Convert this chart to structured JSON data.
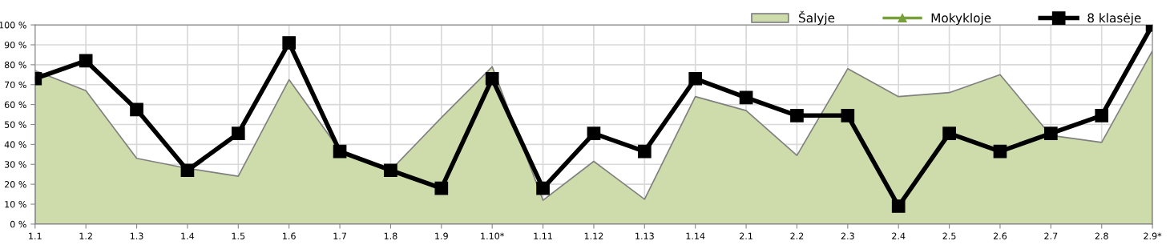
{
  "chart_data": {
    "type": "area",
    "categories": [
      "1.1",
      "1.2",
      "1.3",
      "1.4",
      "1.5",
      "1.6",
      "1.7",
      "1.8",
      "1.9",
      "1.10*",
      "1.11",
      "1.12",
      "1.13",
      "1.14",
      "2.1",
      "2.2",
      "2.3",
      "2.4",
      "2.5",
      "2.6",
      "2.7",
      "2.8",
      "2.9*"
    ],
    "series": [
      {
        "name": "Šalyje",
        "color": "#cddcaa",
        "values": [
          77,
          67,
          33,
          28,
          24,
          72.5,
          37,
          27,
          53.5,
          79,
          12,
          31.5,
          12.5,
          64,
          57,
          34.5,
          78,
          64,
          66,
          75,
          44.5,
          41,
          87
        ]
      },
      {
        "name": "Mokykloje",
        "type": "line",
        "color": "#77a03c",
        "marker": "triangle",
        "values": [
          null,
          null,
          null,
          null,
          null,
          null,
          null,
          null,
          null,
          null,
          null,
          null,
          null,
          null,
          null,
          null,
          null,
          null,
          null,
          null,
          null,
          null,
          null
        ]
      },
      {
        "name": "8 klasėje",
        "type": "line",
        "color": "#000000",
        "marker": "square",
        "values": [
          73,
          82,
          57.5,
          27,
          45.5,
          91,
          36.5,
          27,
          18,
          73,
          18,
          45.5,
          36.5,
          73,
          63.5,
          54.5,
          54.5,
          9,
          45.5,
          36.5,
          45.5,
          54.5,
          100
        ]
      }
    ],
    "ylim": [
      0,
      100
    ],
    "yticks": [
      {
        "value": 0,
        "label": "0 %"
      },
      {
        "value": 10,
        "label": "10 %"
      },
      {
        "value": 20,
        "label": "20 %"
      },
      {
        "value": 30,
        "label": "30 %"
      },
      {
        "value": 40,
        "label": "40 %"
      },
      {
        "value": 50,
        "label": "50 %"
      },
      {
        "value": 60,
        "label": "60 %"
      },
      {
        "value": 70,
        "label": "70 %"
      },
      {
        "value": 80,
        "label": "80 %"
      },
      {
        "value": 90,
        "label": "90 %"
      },
      {
        "value": 100,
        "label": "100 %"
      }
    ],
    "grid": true,
    "legend": "top right"
  }
}
